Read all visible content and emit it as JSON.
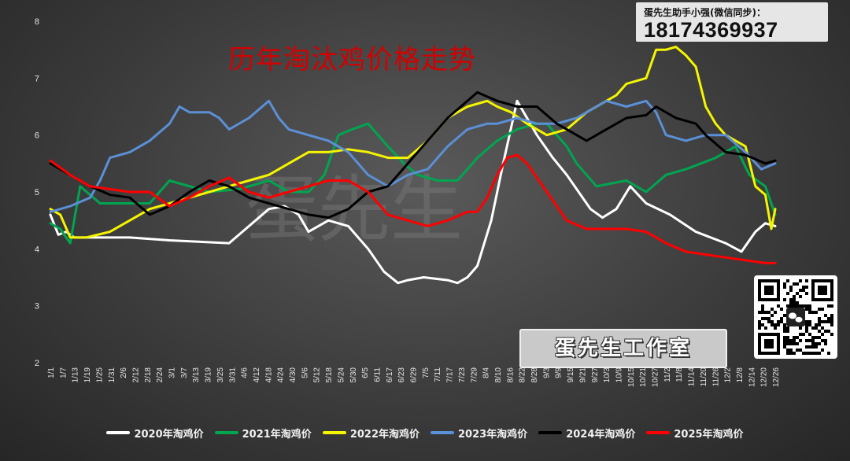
{
  "title": "历年淘汰鸡价格走势",
  "contact": {
    "label": "蛋先生助手小强(微信同步)：",
    "number": "18174369937"
  },
  "studio_label": "蛋先生工作室",
  "watermark": "蛋先生",
  "chart_data": {
    "type": "line",
    "title": "历年淘汰鸡价格走势",
    "xlabel": "",
    "ylabel": "",
    "ylim": [
      2,
      8
    ],
    "yticks": [
      2,
      3,
      4,
      5,
      6,
      7,
      8
    ],
    "grid": false,
    "legend_position": "bottom",
    "x_tick_labels": [
      "1/1",
      "1/7",
      "1/13",
      "1/19",
      "1/25",
      "1/31",
      "2/6",
      "2/12",
      "2/18",
      "2/24",
      "3/1",
      "3/7",
      "3/13",
      "3/19",
      "3/25",
      "3/31",
      "4/6",
      "4/12",
      "4/18",
      "4/24",
      "4/30",
      "5/6",
      "5/12",
      "5/18",
      "5/24",
      "5/30",
      "6/5",
      "6/11",
      "6/17",
      "6/23",
      "6/29",
      "7/5",
      "7/11",
      "7/17",
      "7/23",
      "7/29",
      "8/4",
      "8/10",
      "8/16",
      "8/22",
      "8/28",
      "9/3",
      "9/9",
      "9/15",
      "9/21",
      "9/27",
      "10/3",
      "10/9",
      "10/15",
      "10/21",
      "10/27",
      "11/2",
      "11/8",
      "11/14",
      "11/20",
      "11/26",
      "12/2",
      "12/8",
      "12/14",
      "12/20",
      "12/26"
    ],
    "x_range": [
      0,
      365
    ],
    "x_unit": "day-of-year",
    "series": [
      {
        "name": "2020年淘鸡价",
        "color": "#ffffff",
        "x": [
          0,
          4,
          8,
          12,
          20,
          40,
          60,
          90,
          110,
          118,
          125,
          130,
          140,
          150,
          160,
          168,
          175,
          180,
          188,
          200,
          205,
          210,
          215,
          222,
          228,
          235,
          245,
          253,
          260,
          266,
          272,
          278,
          285,
          292,
          300,
          312,
          325,
          340,
          348,
          355,
          360,
          365
        ],
        "y": [
          4.6,
          4.25,
          4.3,
          4.2,
          4.2,
          4.2,
          4.15,
          4.1,
          4.7,
          4.75,
          4.6,
          4.3,
          4.5,
          4.4,
          4.0,
          3.6,
          3.4,
          3.45,
          3.5,
          3.45,
          3.4,
          3.5,
          3.7,
          4.5,
          5.5,
          6.6,
          6.0,
          5.6,
          5.3,
          5.0,
          4.7,
          4.55,
          4.7,
          5.1,
          4.8,
          4.6,
          4.3,
          4.1,
          3.95,
          4.3,
          4.45,
          4.4
        ]
      },
      {
        "name": "2021年淘鸡价",
        "color": "#00a550",
        "x": [
          0,
          5,
          10,
          15,
          25,
          40,
          50,
          60,
          80,
          95,
          110,
          120,
          130,
          138,
          145,
          152,
          160,
          170,
          178,
          185,
          195,
          205,
          215,
          225,
          235,
          245,
          250,
          260,
          265,
          270,
          275,
          290,
          300,
          310,
          320,
          335,
          345,
          352,
          360,
          365
        ],
        "y": [
          4.45,
          4.35,
          4.1,
          5.1,
          4.8,
          4.8,
          4.8,
          5.2,
          5.0,
          5.05,
          5.2,
          5.0,
          5.0,
          5.3,
          6.0,
          6.1,
          6.2,
          5.8,
          5.5,
          5.3,
          5.2,
          5.2,
          5.6,
          5.9,
          6.1,
          6.2,
          6.2,
          5.8,
          5.5,
          5.3,
          5.1,
          5.2,
          5.0,
          5.3,
          5.4,
          5.6,
          5.8,
          5.3,
          5.1,
          4.6
        ]
      },
      {
        "name": "2022年淘鸡价",
        "color": "#f5f500",
        "x": [
          0,
          5,
          10,
          18,
          30,
          40,
          50,
          60,
          80,
          100,
          110,
          120,
          130,
          140,
          150,
          160,
          170,
          180,
          190,
          200,
          210,
          220,
          225,
          232,
          240,
          250,
          260,
          270,
          280,
          285,
          290,
          300,
          305,
          310,
          315,
          320,
          325,
          330,
          335,
          340,
          350,
          355,
          360,
          363,
          365
        ],
        "y": [
          4.7,
          4.6,
          4.2,
          4.2,
          4.3,
          4.5,
          4.7,
          4.8,
          5.0,
          5.2,
          5.3,
          5.5,
          5.7,
          5.7,
          5.75,
          5.7,
          5.6,
          5.6,
          5.9,
          6.3,
          6.5,
          6.6,
          6.5,
          6.4,
          6.2,
          6.0,
          6.1,
          6.4,
          6.6,
          6.7,
          6.9,
          7.0,
          7.5,
          7.5,
          7.55,
          7.4,
          7.2,
          6.5,
          6.2,
          6.0,
          5.8,
          5.1,
          4.95,
          4.35,
          4.7
        ]
      },
      {
        "name": "2023年淘鸡价",
        "color": "#5b8fd6",
        "x": [
          0,
          10,
          20,
          25,
          30,
          40,
          50,
          60,
          65,
          70,
          80,
          85,
          90,
          100,
          110,
          115,
          120,
          130,
          140,
          150,
          160,
          165,
          170,
          175,
          180,
          190,
          200,
          210,
          220,
          225,
          235,
          245,
          255,
          265,
          280,
          290,
          300,
          305,
          310,
          320,
          330,
          340,
          350,
          358,
          365
        ],
        "y": [
          4.65,
          4.75,
          4.9,
          5.2,
          5.6,
          5.7,
          5.9,
          6.2,
          6.5,
          6.4,
          6.4,
          6.3,
          6.1,
          6.3,
          6.6,
          6.3,
          6.1,
          6.0,
          5.9,
          5.7,
          5.3,
          5.2,
          5.1,
          5.2,
          5.3,
          5.4,
          5.8,
          6.1,
          6.2,
          6.2,
          6.3,
          6.2,
          6.2,
          6.3,
          6.6,
          6.5,
          6.6,
          6.4,
          6.0,
          5.9,
          6.0,
          6.0,
          5.7,
          5.4,
          5.5
        ]
      },
      {
        "name": "2024年淘鸡价",
        "color": "#000000",
        "x": [
          0,
          10,
          20,
          30,
          40,
          50,
          60,
          70,
          80,
          90,
          100,
          110,
          120,
          130,
          140,
          150,
          160,
          170,
          180,
          190,
          200,
          210,
          215,
          225,
          235,
          245,
          255,
          265,
          270,
          280,
          290,
          300,
          305,
          315,
          325,
          330,
          340,
          350,
          360,
          365
        ],
        "y": [
          5.5,
          5.3,
          5.1,
          4.95,
          4.9,
          4.6,
          4.75,
          5.0,
          5.2,
          5.1,
          4.9,
          4.8,
          4.7,
          4.6,
          4.55,
          4.7,
          5.0,
          5.1,
          5.5,
          5.9,
          6.3,
          6.6,
          6.75,
          6.6,
          6.5,
          6.5,
          6.2,
          6.0,
          5.9,
          6.1,
          6.3,
          6.35,
          6.5,
          6.3,
          6.2,
          6.0,
          5.7,
          5.65,
          5.5,
          5.55
        ]
      },
      {
        "name": "2025年淘鸡价",
        "color": "#ff0000",
        "x": [
          0,
          10,
          20,
          30,
          40,
          50,
          60,
          70,
          80,
          90,
          100,
          110,
          120,
          130,
          140,
          150,
          160,
          170,
          180,
          190,
          200,
          210,
          215,
          220,
          225,
          230,
          235,
          240,
          250,
          260,
          270,
          280,
          290,
          300,
          310,
          320,
          330,
          340,
          350,
          360,
          365
        ],
        "y": [
          5.55,
          5.3,
          5.1,
          5.05,
          5.0,
          5.0,
          4.75,
          4.9,
          5.1,
          5.25,
          5.0,
          4.9,
          5.0,
          5.1,
          5.2,
          5.2,
          5.0,
          4.6,
          4.5,
          4.4,
          4.5,
          4.65,
          4.65,
          4.9,
          5.3,
          5.6,
          5.65,
          5.5,
          5.0,
          4.5,
          4.35,
          4.35,
          4.35,
          4.3,
          4.1,
          3.95,
          3.9,
          3.85,
          3.8,
          3.75,
          3.75
        ]
      }
    ]
  }
}
